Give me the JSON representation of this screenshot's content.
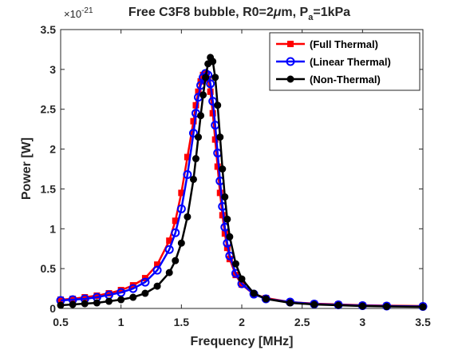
{
  "chart_data": {
    "type": "line",
    "title_main": "Free C3F8 bubble, R0=2",
    "title_mu": "μ",
    "title_rest": "m, P",
    "title_sub": "a",
    "title_tail": "=1kPa",
    "xlabel": "Frequency [MHz]",
    "ylabel": "Power [W]",
    "y_exponent_base": "×10",
    "y_exponent_power": "-21",
    "xlim": [
      0.5,
      3.5
    ],
    "ylim": [
      0,
      3.5
    ],
    "x_ticks": [
      "0.5",
      "1",
      "1.5",
      "2",
      "2.5",
      "3",
      "3.5"
    ],
    "y_ticks": [
      "0",
      "0.5",
      "1",
      "1.5",
      "2",
      "2.5",
      "3",
      "3.5"
    ],
    "legend_position": "top-right",
    "grid": false,
    "x": [
      0.5,
      0.6,
      0.7,
      0.8,
      0.9,
      1.0,
      1.1,
      1.2,
      1.3,
      1.4,
      1.45,
      1.5,
      1.55,
      1.6,
      1.62,
      1.64,
      1.66,
      1.68,
      1.7,
      1.72,
      1.74,
      1.76,
      1.78,
      1.8,
      1.82,
      1.84,
      1.86,
      1.88,
      1.9,
      1.95,
      2.0,
      2.1,
      2.2,
      2.4,
      2.6,
      2.8,
      3.0,
      3.2,
      3.5
    ],
    "series": [
      {
        "name": "(Full Thermal)",
        "color": "#ff0000",
        "marker": "square",
        "values": [
          0.11,
          0.12,
          0.14,
          0.16,
          0.19,
          0.23,
          0.29,
          0.38,
          0.55,
          0.85,
          1.1,
          1.45,
          1.9,
          2.35,
          2.55,
          2.72,
          2.85,
          2.93,
          2.95,
          2.88,
          2.72,
          2.45,
          2.12,
          1.78,
          1.45,
          1.17,
          0.94,
          0.76,
          0.62,
          0.42,
          0.3,
          0.18,
          0.13,
          0.08,
          0.06,
          0.05,
          0.04,
          0.035,
          0.03
        ]
      },
      {
        "name": "(Linear Thermal)",
        "color": "#0000ff",
        "marker": "circle",
        "values": [
          0.1,
          0.11,
          0.12,
          0.14,
          0.17,
          0.2,
          0.25,
          0.33,
          0.48,
          0.74,
          0.95,
          1.25,
          1.68,
          2.2,
          2.45,
          2.65,
          2.8,
          2.9,
          2.95,
          2.93,
          2.82,
          2.6,
          2.3,
          1.95,
          1.6,
          1.28,
          1.02,
          0.82,
          0.66,
          0.44,
          0.31,
          0.18,
          0.12,
          0.08,
          0.055,
          0.045,
          0.035,
          0.03,
          0.025
        ]
      },
      {
        "name": "(Non-Thermal)",
        "color": "#000000",
        "marker": "dot",
        "values": [
          0.04,
          0.05,
          0.06,
          0.07,
          0.09,
          0.11,
          0.14,
          0.19,
          0.28,
          0.45,
          0.6,
          0.82,
          1.15,
          1.62,
          1.88,
          2.15,
          2.42,
          2.68,
          2.9,
          3.07,
          3.15,
          3.1,
          2.9,
          2.55,
          2.15,
          1.75,
          1.4,
          1.12,
          0.9,
          0.56,
          0.37,
          0.19,
          0.12,
          0.07,
          0.05,
          0.04,
          0.03,
          0.025,
          0.02
        ]
      }
    ]
  }
}
